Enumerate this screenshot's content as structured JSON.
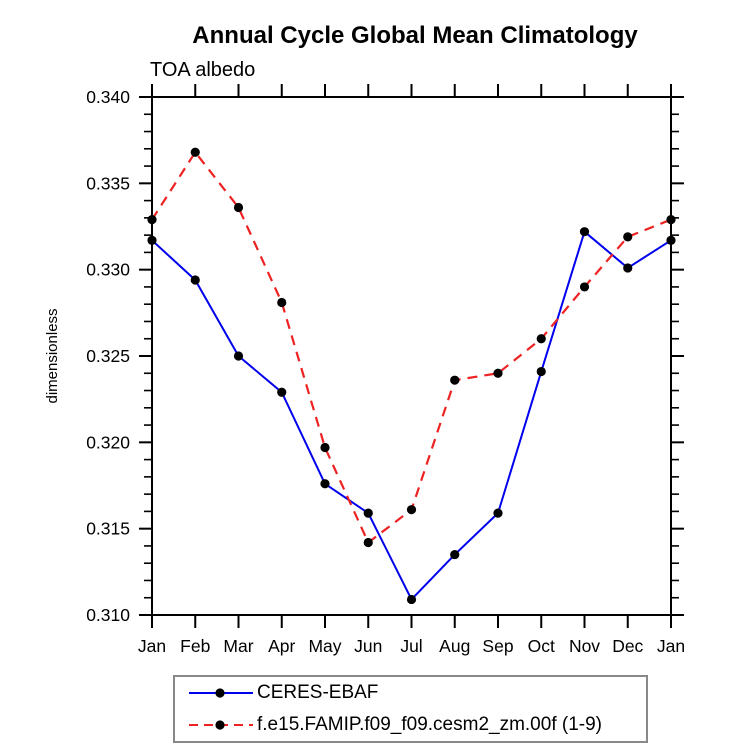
{
  "header": {
    "title": "Annual Cycle Global Mean Climatology",
    "subtitle": "TOA albedo"
  },
  "chart_data": {
    "type": "line",
    "title": "Annual Cycle Global Mean Climatology",
    "subtitle": "TOA albedo",
    "xlabel": "",
    "ylabel": "dimensionless",
    "categories": [
      "Jan",
      "Feb",
      "Mar",
      "Apr",
      "May",
      "Jun",
      "Jul",
      "Aug",
      "Sep",
      "Oct",
      "Nov",
      "Dec",
      "Jan"
    ],
    "ylim": [
      0.31,
      0.34
    ],
    "ytick_step": 0.005,
    "yminor_step": 0.001,
    "ytick_decimals": 3,
    "grid": false,
    "legend_position": "bottom",
    "series": [
      {
        "name": "CERES-EBAF",
        "color": "#0000ee",
        "line_style": "solid",
        "line_width": 2,
        "marker": "black-dot",
        "values": [
          0.3317,
          0.3294,
          0.325,
          0.3229,
          0.3176,
          0.3159,
          0.3109,
          0.3135,
          0.3159,
          0.3241,
          0.3322,
          0.3301,
          0.3317
        ]
      },
      {
        "name": "f.e15.FAMIP.f09_f09.cesm2_zm.00f (1-9)",
        "color": "#ee2222",
        "line_style": "dashed",
        "line_width": 2.2,
        "marker": "black-dot",
        "values": [
          0.3329,
          0.3368,
          0.3336,
          0.3281,
          0.3197,
          0.3142,
          0.3161,
          0.3236,
          0.324,
          0.326,
          0.329,
          0.3319,
          0.3329
        ]
      }
    ],
    "colors": {
      "axis": "#000000",
      "marker": "#000000",
      "legend_border": "#888888"
    }
  },
  "legend": {
    "entries": [
      {
        "label": "CERES-EBAF"
      },
      {
        "label": "f.e15.FAMIP.f09_f09.cesm2_zm.00f (1-9)"
      }
    ]
  }
}
